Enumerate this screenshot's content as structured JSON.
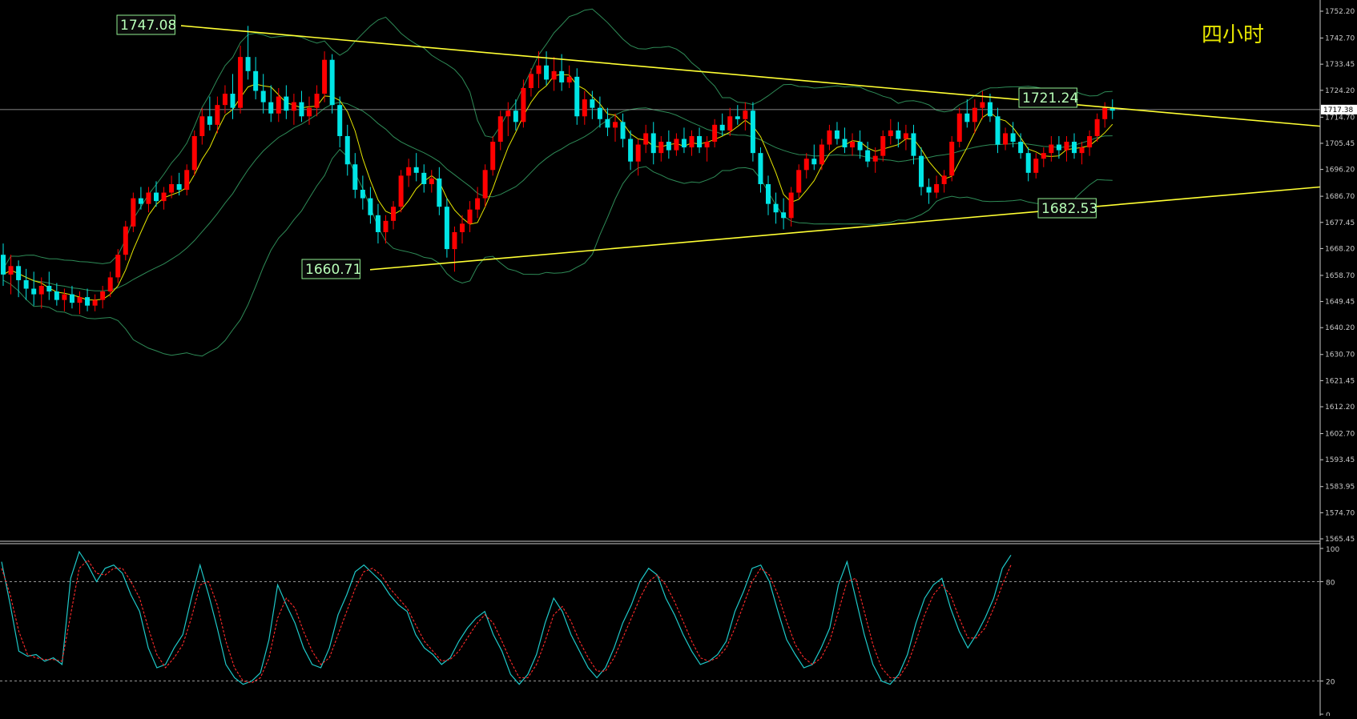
{
  "chart_data": {
    "type": "candlestick",
    "timeframe_label": "四小时",
    "current_price": "1717.38",
    "y_axis": {
      "min": 1565.45,
      "max": 1752.2,
      "ticks": [
        "1752.20",
        "1742.70",
        "1733.45",
        "1724.20",
        "1714.70",
        "1705.45",
        "1696.20",
        "1686.70",
        "1677.45",
        "1668.20",
        "1658.70",
        "1649.45",
        "1640.20",
        "1630.70",
        "1621.45",
        "1612.20",
        "1602.70",
        "1593.45",
        "1583.95",
        "1574.70",
        "1565.45"
      ]
    },
    "annotations": {
      "high_label": "1747.08",
      "low_label": "1660.71",
      "resistance_label": "1721.24",
      "support_label": "1682.53"
    },
    "trendlines": {
      "resistance": [
        [
          0,
          1747.08
        ],
        [
          215,
          1711.5
        ]
      ],
      "support": [
        [
          0,
          1660.71
        ],
        [
          215,
          1690.0
        ]
      ]
    },
    "horizontal_line": 1717.38,
    "candles": [
      [
        1666,
        1670,
        1655,
        1659
      ],
      [
        1659,
        1666,
        1652,
        1662
      ],
      [
        1662,
        1664,
        1651,
        1657
      ],
      [
        1657,
        1661,
        1650,
        1654
      ],
      [
        1654,
        1660,
        1648,
        1652
      ],
      [
        1652,
        1658,
        1647,
        1655
      ],
      [
        1655,
        1660,
        1650,
        1653
      ],
      [
        1653,
        1656,
        1648,
        1650
      ],
      [
        1650,
        1654,
        1646,
        1652
      ],
      [
        1652,
        1655,
        1647,
        1649
      ],
      [
        1649,
        1653,
        1645,
        1651
      ],
      [
        1651,
        1654,
        1646,
        1648
      ],
      [
        1648,
        1652,
        1646,
        1650
      ],
      [
        1650,
        1655,
        1647,
        1653
      ],
      [
        1653,
        1660,
        1651,
        1658
      ],
      [
        1658,
        1668,
        1656,
        1666
      ],
      [
        1666,
        1678,
        1664,
        1676
      ],
      [
        1676,
        1688,
        1674,
        1686
      ],
      [
        1686,
        1690,
        1682,
        1684
      ],
      [
        1684,
        1690,
        1681,
        1688
      ],
      [
        1688,
        1692,
        1683,
        1685
      ],
      [
        1685,
        1690,
        1682,
        1688
      ],
      [
        1688,
        1694,
        1686,
        1691
      ],
      [
        1691,
        1695,
        1687,
        1689
      ],
      [
        1689,
        1698,
        1687,
        1696
      ],
      [
        1696,
        1710,
        1694,
        1708
      ],
      [
        1708,
        1718,
        1705,
        1715
      ],
      [
        1715,
        1722,
        1710,
        1712
      ],
      [
        1712,
        1722,
        1709,
        1719
      ],
      [
        1719,
        1726,
        1716,
        1723
      ],
      [
        1723,
        1730,
        1714,
        1718
      ],
      [
        1718,
        1740,
        1716,
        1736
      ],
      [
        1736,
        1747,
        1728,
        1731
      ],
      [
        1731,
        1736,
        1721,
        1724
      ],
      [
        1724,
        1730,
        1716,
        1720
      ],
      [
        1720,
        1726,
        1713,
        1716
      ],
      [
        1716,
        1725,
        1713,
        1722
      ],
      [
        1722,
        1726,
        1714,
        1717
      ],
      [
        1717,
        1723,
        1712,
        1720
      ],
      [
        1720,
        1724,
        1713,
        1715
      ],
      [
        1715,
        1722,
        1712,
        1718
      ],
      [
        1718,
        1726,
        1715,
        1723
      ],
      [
        1723,
        1738,
        1720,
        1735
      ],
      [
        1735,
        1737,
        1716,
        1719
      ],
      [
        1719,
        1722,
        1704,
        1708
      ],
      [
        1708,
        1712,
        1694,
        1698
      ],
      [
        1698,
        1702,
        1686,
        1689
      ],
      [
        1689,
        1694,
        1682,
        1686
      ],
      [
        1686,
        1690,
        1677,
        1680
      ],
      [
        1680,
        1684,
        1670,
        1674
      ],
      [
        1674,
        1680,
        1670,
        1678
      ],
      [
        1678,
        1685,
        1675,
        1683
      ],
      [
        1683,
        1696,
        1681,
        1694
      ],
      [
        1694,
        1700,
        1690,
        1697
      ],
      [
        1697,
        1702,
        1692,
        1695
      ],
      [
        1695,
        1698,
        1688,
        1691
      ],
      [
        1691,
        1696,
        1688,
        1693
      ],
      [
        1693,
        1697,
        1680,
        1683
      ],
      [
        1683,
        1686,
        1665,
        1668
      ],
      [
        1668,
        1676,
        1660,
        1674
      ],
      [
        1674,
        1680,
        1670,
        1677
      ],
      [
        1677,
        1685,
        1674,
        1682
      ],
      [
        1682,
        1690,
        1679,
        1686
      ],
      [
        1686,
        1698,
        1683,
        1696
      ],
      [
        1696,
        1708,
        1694,
        1706
      ],
      [
        1706,
        1717,
        1703,
        1715
      ],
      [
        1715,
        1720,
        1708,
        1717
      ],
      [
        1717,
        1721,
        1710,
        1713
      ],
      [
        1713,
        1728,
        1711,
        1725
      ],
      [
        1725,
        1732,
        1722,
        1730
      ],
      [
        1730,
        1738,
        1725,
        1733
      ],
      [
        1733,
        1738,
        1726,
        1728
      ],
      [
        1728,
        1736,
        1724,
        1731
      ],
      [
        1731,
        1737,
        1724,
        1727
      ],
      [
        1727,
        1733,
        1725,
        1729
      ],
      [
        1729,
        1732,
        1712,
        1715
      ],
      [
        1715,
        1724,
        1712,
        1721
      ],
      [
        1721,
        1724,
        1714,
        1718
      ],
      [
        1718,
        1722,
        1711,
        1714
      ],
      [
        1714,
        1718,
        1708,
        1711
      ],
      [
        1711,
        1716,
        1706,
        1713
      ],
      [
        1713,
        1716,
        1704,
        1707
      ],
      [
        1707,
        1710,
        1696,
        1699
      ],
      [
        1699,
        1707,
        1694,
        1705
      ],
      [
        1705,
        1712,
        1702,
        1709
      ],
      [
        1709,
        1713,
        1698,
        1702
      ],
      [
        1702,
        1708,
        1699,
        1706
      ],
      [
        1706,
        1710,
        1700,
        1703
      ],
      [
        1703,
        1709,
        1701,
        1707
      ],
      [
        1707,
        1711,
        1702,
        1704
      ],
      [
        1704,
        1710,
        1701,
        1708
      ],
      [
        1708,
        1711,
        1702,
        1704
      ],
      [
        1704,
        1708,
        1699,
        1706
      ],
      [
        1706,
        1714,
        1704,
        1712
      ],
      [
        1712,
        1716,
        1708,
        1710
      ],
      [
        1710,
        1718,
        1708,
        1715
      ],
      [
        1715,
        1719,
        1712,
        1714
      ],
      [
        1714,
        1720,
        1710,
        1717
      ],
      [
        1717,
        1720,
        1699,
        1702
      ],
      [
        1702,
        1704,
        1688,
        1691
      ],
      [
        1691,
        1694,
        1680,
        1684
      ],
      [
        1684,
        1688,
        1677,
        1681
      ],
      [
        1681,
        1686,
        1675,
        1679
      ],
      [
        1679,
        1690,
        1676,
        1688
      ],
      [
        1688,
        1698,
        1686,
        1696
      ],
      [
        1696,
        1702,
        1693,
        1700
      ],
      [
        1700,
        1705,
        1696,
        1698
      ],
      [
        1698,
        1707,
        1696,
        1705
      ],
      [
        1705,
        1712,
        1703,
        1710
      ],
      [
        1710,
        1713,
        1705,
        1707
      ],
      [
        1707,
        1711,
        1702,
        1704
      ],
      [
        1704,
        1709,
        1701,
        1706
      ],
      [
        1706,
        1710,
        1700,
        1703
      ],
      [
        1703,
        1706,
        1697,
        1699
      ],
      [
        1699,
        1704,
        1695,
        1701
      ],
      [
        1701,
        1710,
        1699,
        1708
      ],
      [
        1708,
        1714,
        1705,
        1710
      ],
      [
        1710,
        1713,
        1704,
        1707
      ],
      [
        1707,
        1712,
        1703,
        1709
      ],
      [
        1709,
        1712,
        1698,
        1701
      ],
      [
        1701,
        1704,
        1687,
        1690
      ],
      [
        1690,
        1693,
        1684,
        1688
      ],
      [
        1688,
        1694,
        1686,
        1691
      ],
      [
        1691,
        1696,
        1688,
        1694
      ],
      [
        1694,
        1708,
        1692,
        1706
      ],
      [
        1706,
        1718,
        1704,
        1716
      ],
      [
        1716,
        1721,
        1711,
        1713
      ],
      [
        1713,
        1721,
        1709,
        1718
      ],
      [
        1718,
        1724,
        1714,
        1720
      ],
      [
        1720,
        1723,
        1713,
        1715
      ],
      [
        1715,
        1718,
        1702,
        1705
      ],
      [
        1705,
        1711,
        1703,
        1709
      ],
      [
        1709,
        1713,
        1704,
        1706
      ],
      [
        1706,
        1709,
        1700,
        1702
      ],
      [
        1702,
        1704,
        1692,
        1695
      ],
      [
        1695,
        1702,
        1693,
        1700
      ],
      [
        1700,
        1704,
        1697,
        1702
      ],
      [
        1702,
        1708,
        1699,
        1705
      ],
      [
        1705,
        1708,
        1700,
        1703
      ],
      [
        1703,
        1708,
        1699,
        1706
      ],
      [
        1706,
        1709,
        1700,
        1702
      ],
      [
        1702,
        1706,
        1698,
        1704
      ],
      [
        1704,
        1710,
        1701,
        1708
      ],
      [
        1708,
        1716,
        1706,
        1714
      ],
      [
        1714,
        1720,
        1711,
        1718
      ],
      [
        1718,
        1721,
        1714,
        1717
      ]
    ],
    "stoch_k": [
      92,
      66,
      38,
      35,
      36,
      32,
      34,
      30,
      82,
      98,
      90,
      80,
      88,
      90,
      85,
      72,
      62,
      40,
      28,
      30,
      40,
      48,
      70,
      90,
      72,
      52,
      30,
      22,
      18,
      20,
      25,
      45,
      78,
      66,
      55,
      40,
      30,
      28,
      40,
      60,
      72,
      86,
      90,
      85,
      80,
      72,
      66,
      62,
      48,
      40,
      36,
      30,
      34,
      44,
      52,
      58,
      62,
      48,
      38,
      24,
      18,
      24,
      36,
      55,
      70,
      62,
      48,
      38,
      28,
      22,
      28,
      40,
      55,
      66,
      80,
      88,
      84,
      70,
      60,
      48,
      38,
      30,
      32,
      36,
      44,
      62,
      74,
      88,
      90,
      80,
      62,
      45,
      36,
      28,
      30,
      40,
      52,
      78,
      92,
      70,
      48,
      30,
      20,
      18,
      24,
      36,
      55,
      70,
      78,
      82,
      64,
      50,
      40,
      48,
      58,
      70,
      88,
      96
    ],
    "stoch_d": [
      88,
      72,
      50,
      36,
      34,
      33,
      33,
      32,
      60,
      88,
      93,
      85,
      84,
      88,
      88,
      80,
      70,
      52,
      36,
      28,
      34,
      42,
      58,
      78,
      80,
      66,
      44,
      28,
      20,
      19,
      22,
      34,
      58,
      70,
      64,
      50,
      38,
      30,
      34,
      48,
      62,
      76,
      86,
      88,
      84,
      76,
      70,
      64,
      54,
      44,
      38,
      32,
      33,
      38,
      46,
      54,
      60,
      55,
      44,
      32,
      22,
      22,
      30,
      44,
      60,
      65,
      56,
      44,
      34,
      26,
      26,
      34,
      46,
      58,
      70,
      80,
      84,
      78,
      68,
      56,
      44,
      34,
      32,
      34,
      40,
      52,
      66,
      80,
      88,
      84,
      72,
      56,
      42,
      34,
      30,
      34,
      44,
      62,
      80,
      82,
      62,
      42,
      28,
      22,
      22,
      30,
      44,
      60,
      72,
      78,
      72,
      58,
      46,
      46,
      52,
      64,
      78,
      90
    ],
    "stoch_ticks": [
      "100",
      "80",
      "20",
      "0"
    ]
  }
}
